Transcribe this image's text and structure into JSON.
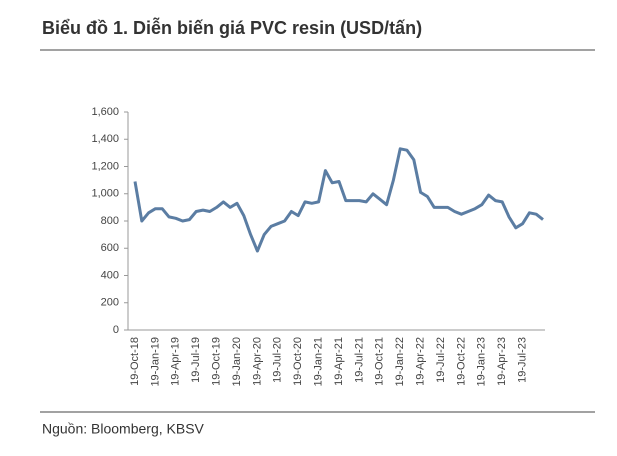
{
  "chart_data": {
    "type": "line",
    "title": "Biểu đồ 1. Diễn biến giá PVC resin (USD/tấn)",
    "source": "Nguồn: Bloomberg, KBSV",
    "categories": [
      "19-Oct-18",
      null,
      null,
      "19-Jan-19",
      null,
      null,
      "19-Apr-19",
      null,
      null,
      "19-Jul-19",
      null,
      null,
      "19-Oct-19",
      null,
      null,
      "19-Jan-20",
      null,
      null,
      "19-Apr-20",
      null,
      null,
      "19-Jul-20",
      null,
      null,
      "19-Oct-20",
      null,
      null,
      "19-Jan-21",
      null,
      null,
      "19-Apr-21",
      null,
      null,
      "19-Jul-21",
      null,
      null,
      "19-Oct-21",
      null,
      null,
      "19-Jan-22",
      null,
      null,
      "19-Apr-22",
      null,
      null,
      "19-Jul-22",
      null,
      null,
      "19-Oct-22",
      null,
      null,
      "19-Jan-23",
      null,
      null,
      "19-Apr-23",
      null,
      null,
      "19-Jul-23",
      null,
      null,
      null
    ],
    "values": [
      1090,
      800,
      860,
      890,
      890,
      830,
      820,
      800,
      810,
      870,
      880,
      870,
      900,
      940,
      900,
      930,
      840,
      700,
      580,
      700,
      760,
      780,
      800,
      870,
      840,
      940,
      930,
      940,
      1170,
      1080,
      1090,
      950,
      950,
      950,
      940,
      1000,
      960,
      920,
      1100,
      1330,
      1320,
      1250,
      1010,
      980,
      900,
      900,
      900,
      870,
      850,
      870,
      890,
      920,
      990,
      950,
      940,
      830,
      750,
      780,
      860,
      850,
      810
    ],
    "color": "#5b7da3",
    "ylim": [
      0,
      1600
    ],
    "yticks": [
      0,
      200,
      400,
      600,
      800,
      {
        "value": 1000,
        "label": "1,000"
      },
      {
        "value": 1200,
        "label": "1,200"
      },
      {
        "value": 1400,
        "label": "1,400"
      },
      {
        "value": 1600,
        "label": "1,600"
      }
    ]
  }
}
